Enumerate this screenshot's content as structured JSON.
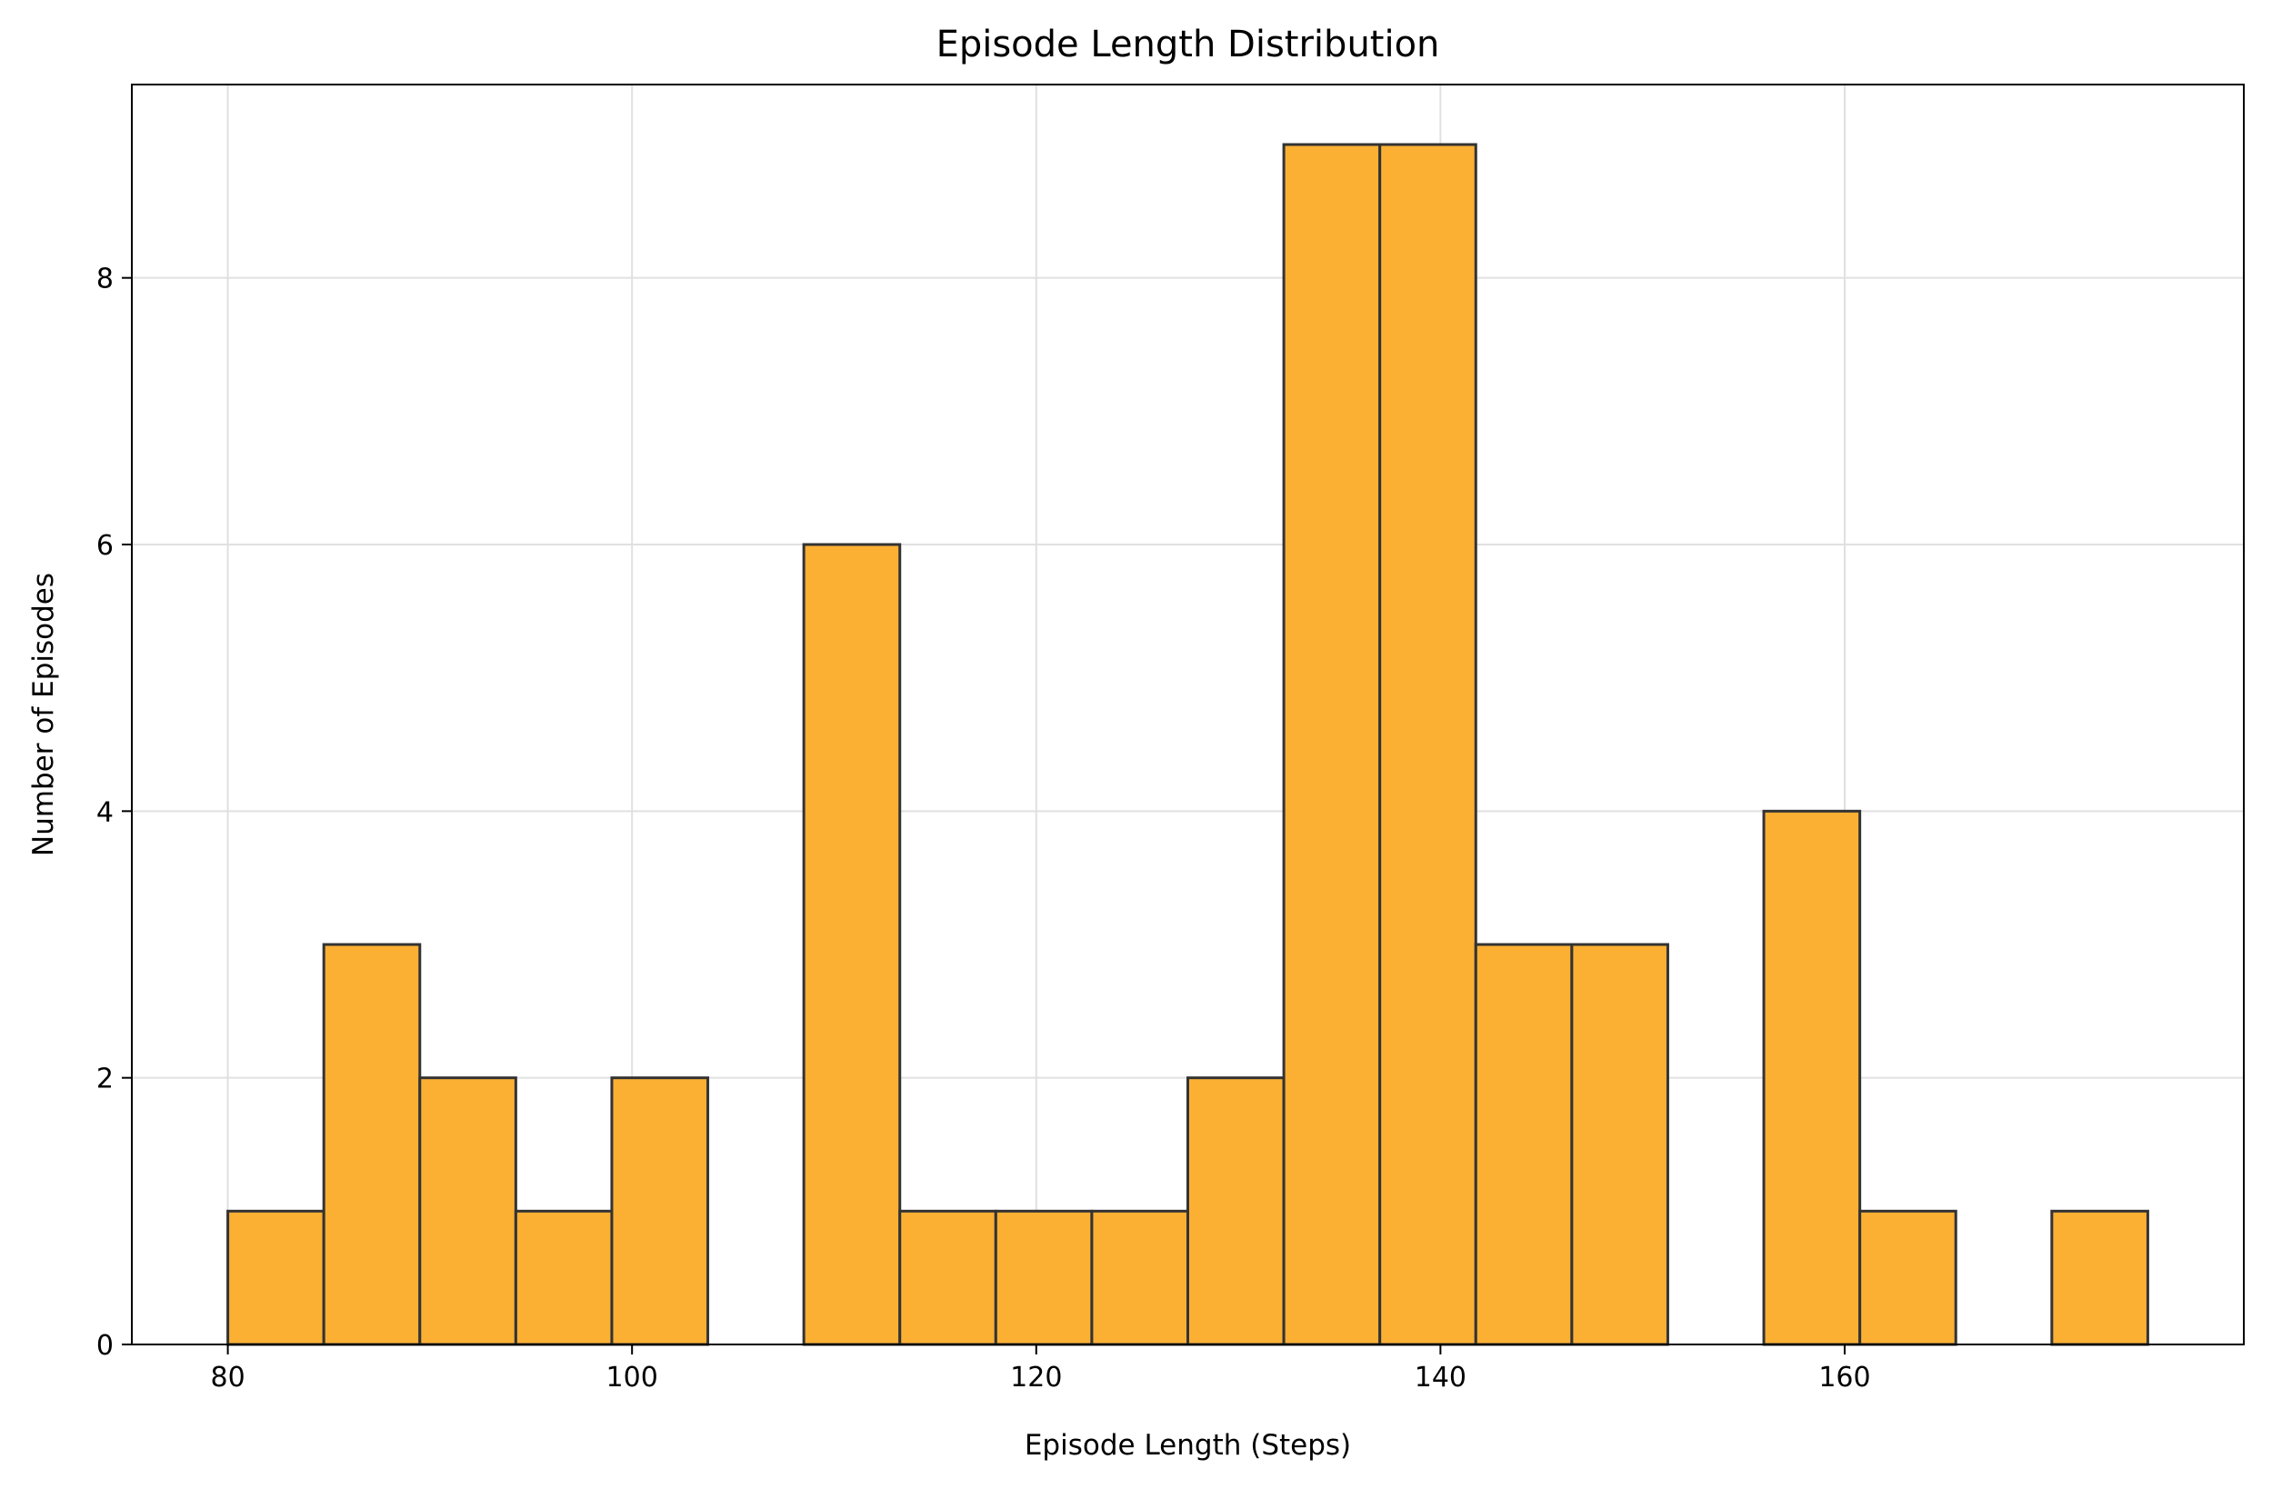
{
  "chart_data": {
    "type": "bar",
    "title": "Episode Length Distribution",
    "xlabel": "Episode Length (Steps)",
    "ylabel": "Number of Episodes",
    "bin_edges": [
      80.0,
      84.75,
      89.5,
      94.25,
      99.0,
      103.75,
      108.5,
      113.25,
      118.0,
      122.75,
      127.5,
      132.25,
      137.0,
      141.75,
      146.5,
      151.25,
      156.0,
      160.75,
      165.5,
      170.25,
      175.0
    ],
    "counts": [
      1,
      3,
      2,
      1,
      2,
      0,
      6,
      1,
      1,
      1,
      2,
      9,
      9,
      3,
      3,
      0,
      4,
      1,
      0,
      1
    ],
    "xlim": [
      75.25,
      179.75
    ],
    "ylim": [
      0,
      9.45
    ],
    "xticks": [
      "80",
      "100",
      "120",
      "140",
      "160"
    ],
    "xtick_values": [
      80,
      100,
      120,
      140,
      160
    ],
    "yticks": [
      "0",
      "2",
      "4",
      "6",
      "8"
    ],
    "ytick_values": [
      0,
      2,
      4,
      6,
      8
    ],
    "grid": true,
    "bar_color": "#FBB034",
    "bar_edge_color": "#333333"
  }
}
